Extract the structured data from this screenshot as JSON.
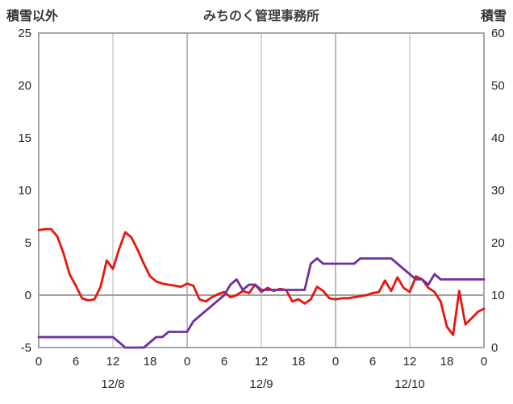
{
  "header": {
    "left_axis_title": "積雪以外",
    "title": "みちのく管理事務所",
    "right_axis_title": "積雪"
  },
  "colors": {
    "red": "#e8140c",
    "purple": "#7030a0",
    "border": "#a6a6a6",
    "grid_noon": "#bfbfbf",
    "grid_midnight": "#8c8c8c",
    "zero_line": "#a0a0a0",
    "tick_text": "#262626"
  },
  "chart_data": {
    "type": "line",
    "title": "みちのく管理事務所",
    "legend": "none",
    "left_axis": {
      "label": "積雪以外",
      "min": -5,
      "max": 25,
      "ticks": [
        25,
        20,
        15,
        10,
        5,
        0,
        -5
      ]
    },
    "right_axis": {
      "label": "積雪",
      "min": 0,
      "max": 60,
      "ticks": [
        60,
        50,
        40,
        30,
        20,
        10,
        0
      ]
    },
    "x_axis": {
      "hours_total": 72,
      "tick_interval_hours": 6,
      "tick_labels": [
        "0",
        "6",
        "12",
        "18",
        "0",
        "6",
        "12",
        "18",
        "0",
        "6",
        "12",
        "18",
        "0"
      ],
      "day_labels": [
        {
          "label": "12/8",
          "hour": 12
        },
        {
          "label": "12/9",
          "hour": 36
        },
        {
          "label": "12/10",
          "hour": 60
        }
      ],
      "gridline_hours_noon": [
        12,
        36,
        60
      ],
      "gridline_hours_midnight": [
        24,
        48
      ]
    },
    "grid": {
      "zero_line": true,
      "horizontal_gridlines": false
    },
    "series": [
      {
        "name": "red",
        "axis": "left",
        "color": "#e8140c",
        "values": [
          6.2,
          6.3,
          6.3,
          5.6,
          4.0,
          2.0,
          0.9,
          -0.3,
          -0.5,
          -0.4,
          0.8,
          3.3,
          2.5,
          4.4,
          6.0,
          5.5,
          4.3,
          3.0,
          1.8,
          1.3,
          1.1,
          1.0,
          0.9,
          0.8,
          1.1,
          0.9,
          -0.4,
          -0.6,
          -0.2,
          0.1,
          0.3,
          -0.2,
          0.0,
          0.4,
          0.2,
          1.0,
          0.3,
          0.7,
          0.4,
          0.6,
          0.5,
          -0.6,
          -0.4,
          -0.8,
          -0.4,
          0.8,
          0.4,
          -0.3,
          -0.4,
          -0.3,
          -0.3,
          -0.2,
          -0.1,
          0.0,
          0.2,
          0.3,
          1.4,
          0.4,
          1.7,
          0.7,
          0.3,
          1.8,
          1.5,
          0.7,
          0.3,
          -0.6,
          -3.0,
          -3.8,
          0.4,
          -2.8,
          -2.2,
          -1.6,
          -1.3
        ]
      },
      {
        "name": "purple",
        "axis": "right",
        "color": "#7030a0",
        "values": [
          2,
          2,
          2,
          2,
          2,
          2,
          2,
          2,
          2,
          2,
          2,
          2,
          2,
          1,
          0,
          0,
          0,
          0,
          1,
          2,
          2,
          3,
          3,
          3,
          3,
          5,
          6,
          7,
          8,
          9,
          10,
          12,
          13,
          11,
          12,
          12,
          11,
          11,
          11,
          11,
          11,
          11,
          11,
          11,
          16,
          17,
          16,
          16,
          16,
          16,
          16,
          16,
          17,
          17,
          17,
          17,
          17,
          17,
          16,
          15,
          14,
          13,
          13,
          12,
          14,
          13,
          13,
          13,
          13,
          13,
          13,
          13,
          13
        ]
      }
    ]
  }
}
